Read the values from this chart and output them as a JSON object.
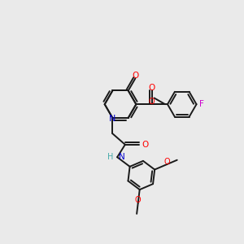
{
  "bg_color": "#eaeaea",
  "bond_color": "#1a1a1a",
  "bond_lw": 1.4,
  "atom_colors": {
    "O": "#ff0000",
    "N": "#0000cc",
    "F": "#cc00cc",
    "H": "#44aaaa",
    "C": "#1a1a1a"
  },
  "figsize": [
    3.0,
    3.0
  ],
  "dpi": 100
}
